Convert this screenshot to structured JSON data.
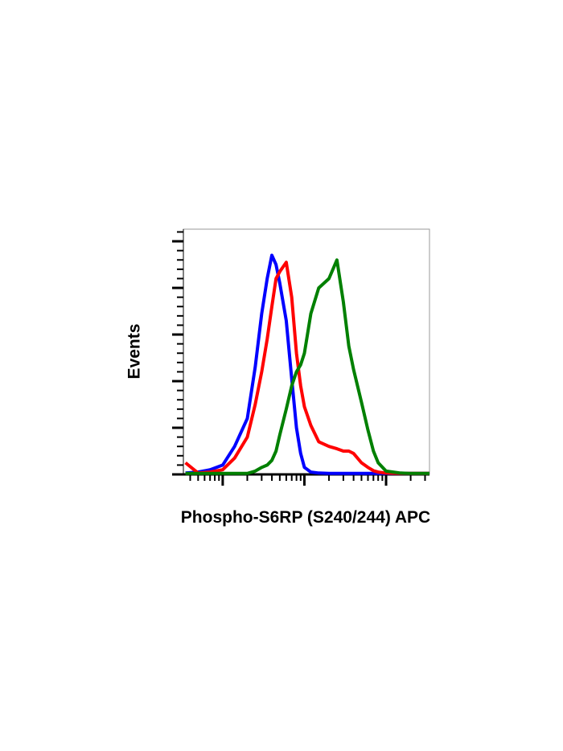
{
  "chart_data": {
    "type": "line",
    "y_label": "Events",
    "x_label": "Phospho-S6RP (S240/244) APC",
    "x_log": true,
    "xlim": [
      33,
      34000
    ],
    "xticks": [
      100,
      1000,
      10000
    ],
    "ylim": [
      0,
      5.26
    ],
    "yticks": [
      0,
      1,
      2,
      3,
      4,
      5
    ],
    "x": [
      35,
      50,
      70,
      100,
      140,
      200,
      250,
      300,
      350,
      400,
      450,
      500,
      600,
      700,
      800,
      900,
      1000,
      1200,
      1500,
      2000,
      2500,
      3000,
      3500,
      4000,
      5000,
      6000,
      7000,
      8000,
      10000,
      15000,
      20000,
      34000
    ],
    "series": [
      {
        "color": "#0000ff",
        "values": [
          0.03,
          0.05,
          0.1,
          0.2,
          0.6,
          1.2,
          2.3,
          3.45,
          4.2,
          4.7,
          4.5,
          4.1,
          3.3,
          2.05,
          1.0,
          0.45,
          0.15,
          0.05,
          0.03,
          0.02,
          0.02,
          0.02,
          0.02,
          0.02,
          0.02,
          0.02,
          0.02,
          0.02,
          0.02,
          0.02,
          0.02,
          0.02
        ]
      },
      {
        "color": "#ff0000",
        "values": [
          0.25,
          0.03,
          0.05,
          0.1,
          0.35,
          0.8,
          1.5,
          2.2,
          2.9,
          3.6,
          4.2,
          4.35,
          4.55,
          3.8,
          2.6,
          1.9,
          1.45,
          1.05,
          0.7,
          0.6,
          0.55,
          0.5,
          0.5,
          0.45,
          0.25,
          0.15,
          0.08,
          0.05,
          0.03,
          0.02,
          0.02,
          0.02
        ]
      },
      {
        "color": "#008000",
        "values": [
          0.02,
          0.02,
          0.02,
          0.02,
          0.02,
          0.02,
          0.07,
          0.15,
          0.2,
          0.3,
          0.5,
          0.85,
          1.4,
          1.9,
          2.2,
          2.35,
          2.6,
          3.45,
          4.0,
          4.2,
          4.6,
          3.7,
          2.75,
          2.25,
          1.55,
          0.95,
          0.5,
          0.25,
          0.07,
          0.03,
          0.02,
          0.02
        ]
      }
    ]
  }
}
